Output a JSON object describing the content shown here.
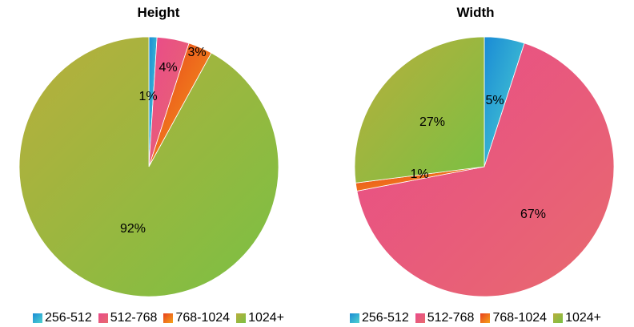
{
  "chart_data": [
    {
      "type": "pie",
      "title": "Height",
      "categories": [
        "256-512",
        "512-768",
        "768-1024",
        "1024+"
      ],
      "values": [
        1,
        4,
        3,
        92
      ],
      "data_labels": [
        "1%",
        "4%",
        "3%",
        "92%"
      ],
      "colors": [
        [
          "#1a8bd6",
          "#4fd3d0"
        ],
        [
          "#e94a8a",
          "#e86a6e"
        ],
        [
          "#e8401e",
          "#f5a21a"
        ],
        [
          "#b9ae3c",
          "#7ac043"
        ]
      ],
      "legend_position": "bottom"
    },
    {
      "type": "pie",
      "title": "Width",
      "categories": [
        "256-512",
        "512-768",
        "768-1024",
        "1024+"
      ],
      "values": [
        5,
        67,
        1,
        27
      ],
      "data_labels": [
        "5%",
        "67%",
        "1%",
        "27%"
      ],
      "colors": [
        [
          "#1a8bd6",
          "#4fd3d0"
        ],
        [
          "#e94a8a",
          "#e86a6e"
        ],
        [
          "#e8401e",
          "#f5a21a"
        ],
        [
          "#b9ae3c",
          "#7ac043"
        ]
      ],
      "legend_position": "bottom"
    }
  ]
}
